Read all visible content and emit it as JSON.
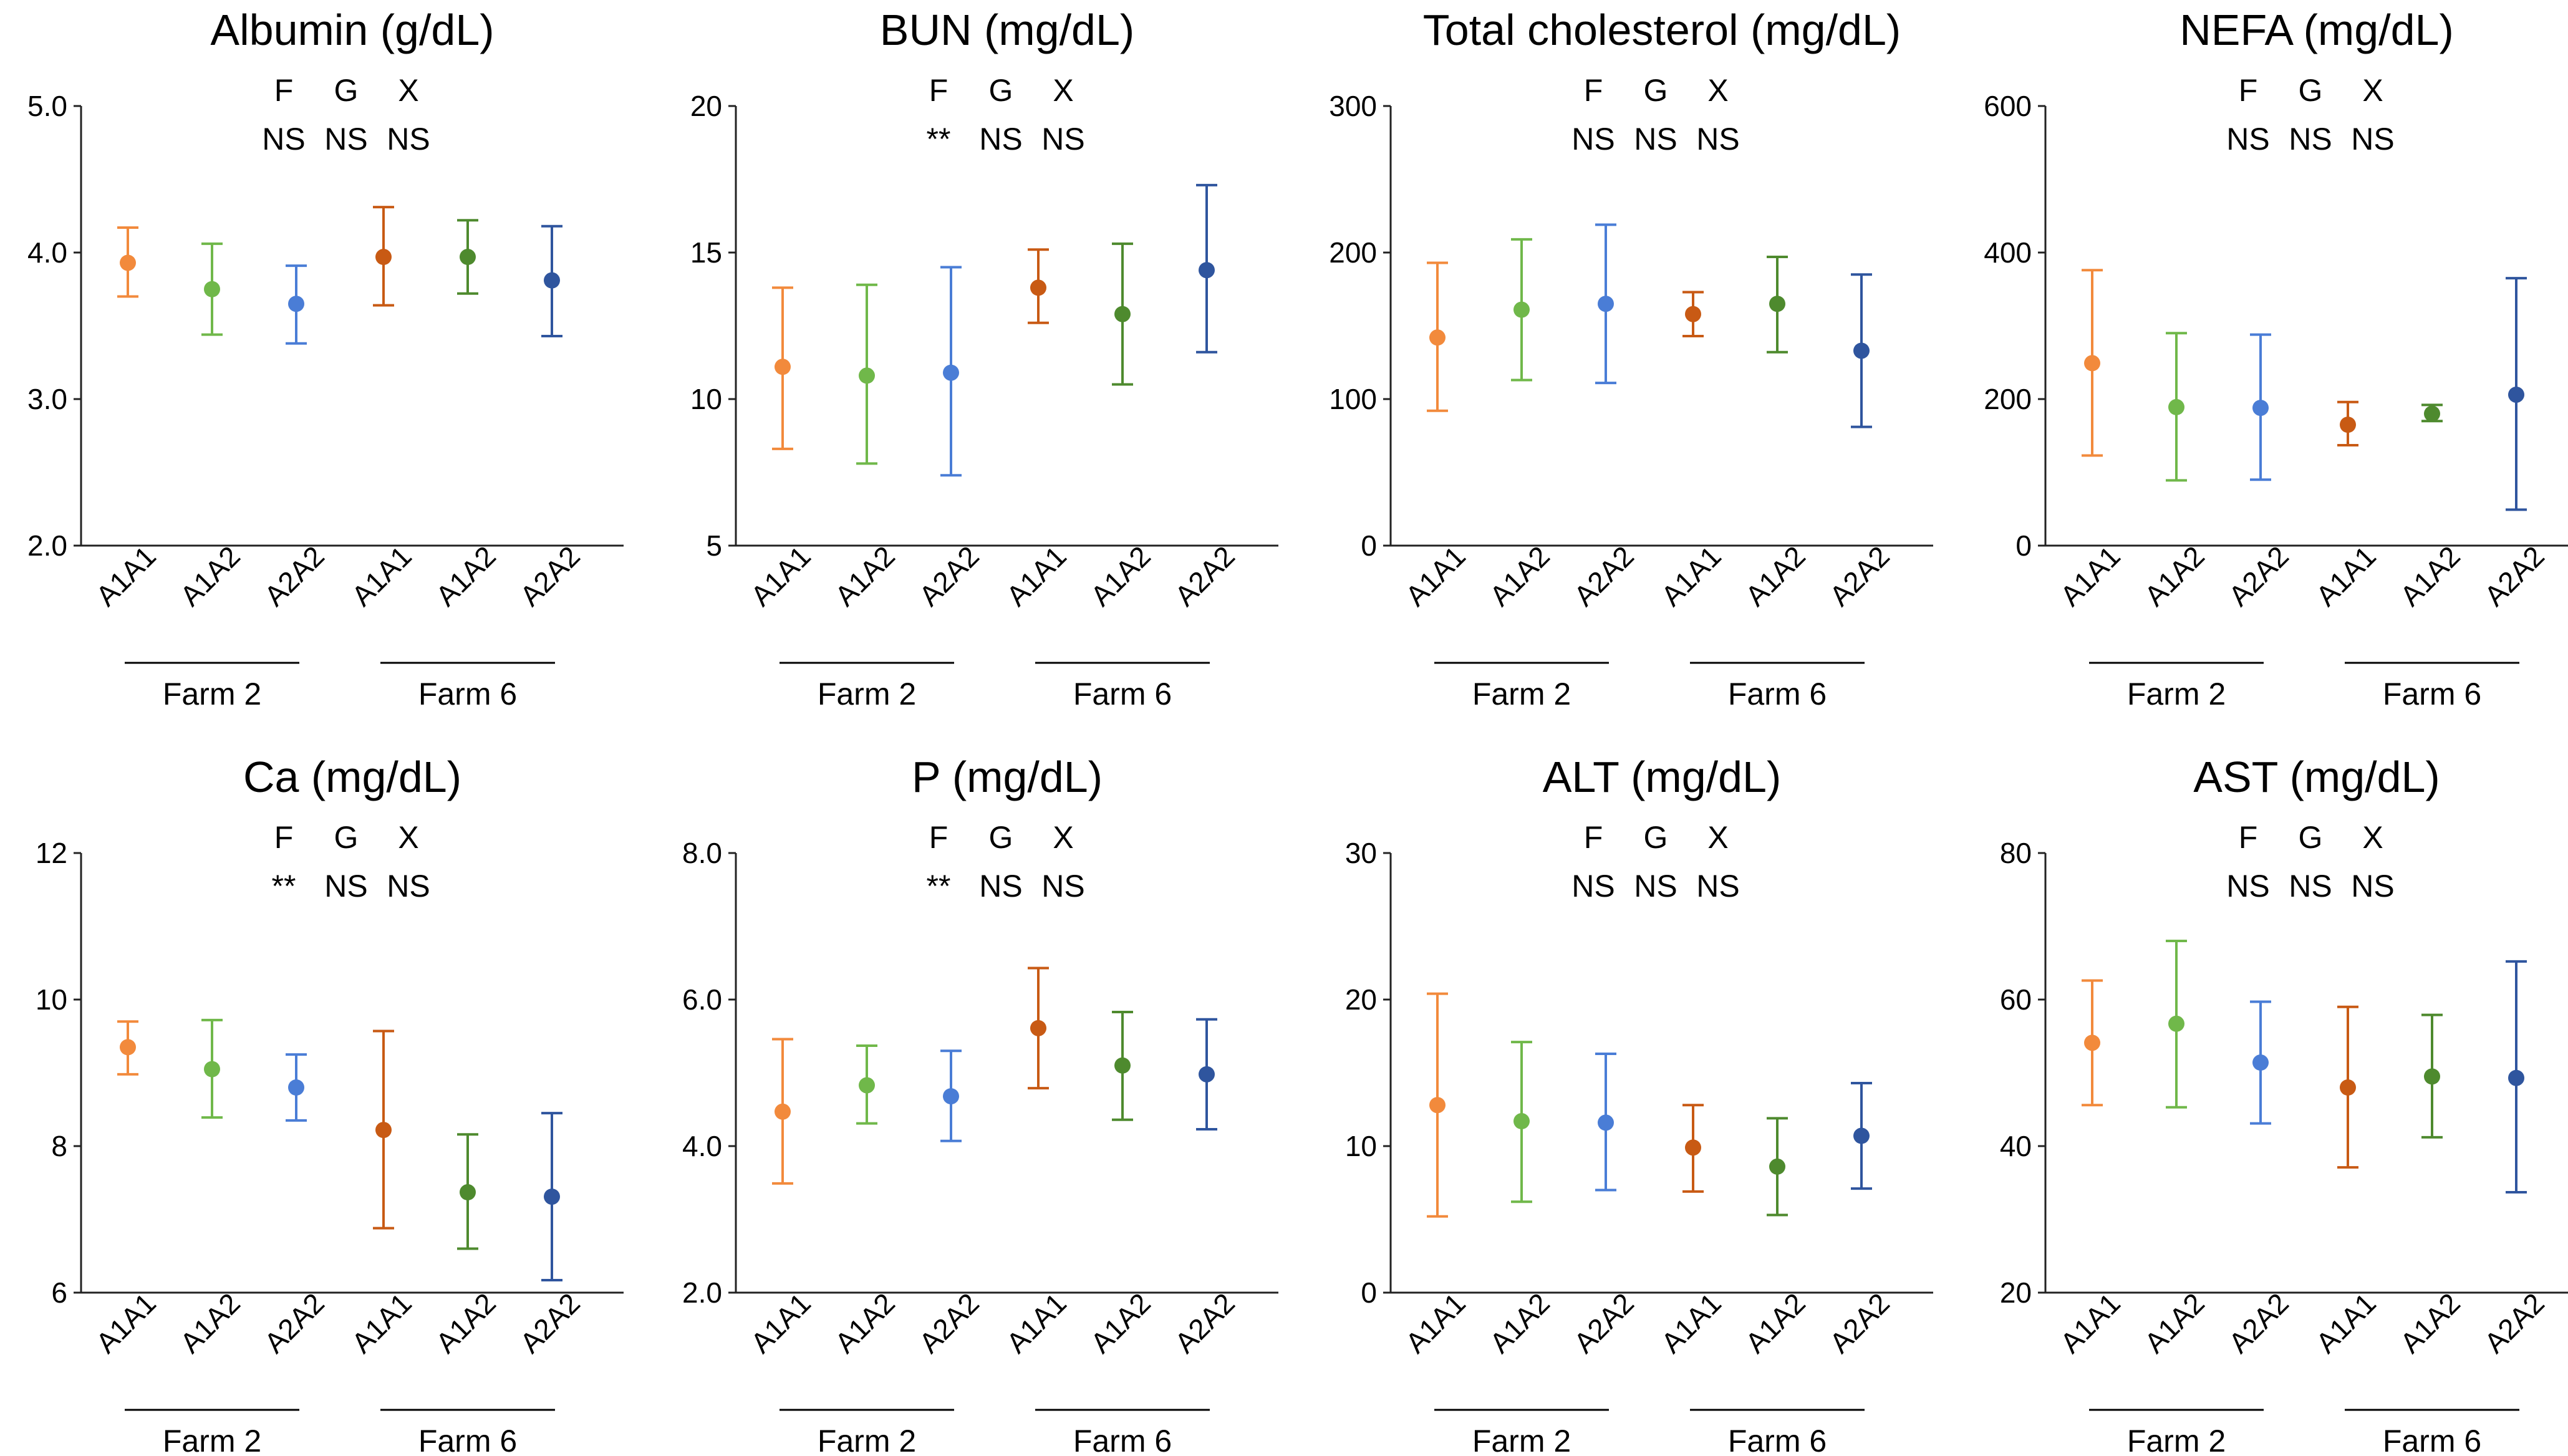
{
  "colors": {
    "farm2": [
      "#F28A3C",
      "#70B84A",
      "#4A7DD6"
    ],
    "farm6": [
      "#C85A14",
      "#4E8A2E",
      "#2F559E"
    ]
  },
  "stat_labels": [
    "F",
    "G",
    "X"
  ],
  "chart_data": [
    {
      "type": "errorbar",
      "title": "Albumin (g/dL)",
      "y_ticks": [
        "2.0",
        "3.0",
        "4.0",
        "5.0"
      ],
      "ylim": [
        2,
        5
      ],
      "stats": [
        "NS",
        "NS",
        "NS"
      ],
      "groups": [
        {
          "name": "Farm 2",
          "categories": [
            "A1A1",
            "A1A2",
            "A2A2"
          ],
          "mean": [
            3.93,
            3.75,
            3.65
          ],
          "low": [
            3.7,
            3.44,
            3.38
          ],
          "high": [
            4.17,
            4.06,
            3.91
          ]
        },
        {
          "name": "Farm 6",
          "categories": [
            "A1A1",
            "A1A2",
            "A2A2"
          ],
          "mean": [
            3.97,
            3.97,
            3.81
          ],
          "low": [
            3.64,
            3.72,
            3.43
          ],
          "high": [
            4.31,
            4.22,
            4.18
          ]
        }
      ]
    },
    {
      "type": "errorbar",
      "title": "BUN (mg/dL)",
      "y_ticks": [
        "5",
        "10",
        "15",
        "20"
      ],
      "ylim": [
        5,
        20
      ],
      "stats": [
        "**",
        "NS",
        "NS"
      ],
      "groups": [
        {
          "name": "Farm 2",
          "categories": [
            "A1A1",
            "A1A2",
            "A2A2"
          ],
          "mean": [
            11.1,
            10.8,
            10.9
          ],
          "low": [
            8.3,
            7.8,
            7.4
          ],
          "high": [
            13.8,
            13.9,
            14.5
          ]
        },
        {
          "name": "Farm 6",
          "categories": [
            "A1A1",
            "A1A2",
            "A2A2"
          ],
          "mean": [
            13.8,
            12.9,
            14.4
          ],
          "low": [
            12.6,
            10.5,
            11.6
          ],
          "high": [
            15.1,
            15.3,
            17.3
          ]
        }
      ]
    },
    {
      "type": "errorbar",
      "title": "Total cholesterol (mg/dL)",
      "y_ticks": [
        "0",
        "100",
        "200",
        "300"
      ],
      "ylim": [
        0,
        300
      ],
      "stats": [
        "NS",
        "NS",
        "NS"
      ],
      "groups": [
        {
          "name": "Farm 2",
          "categories": [
            "A1A1",
            "A1A2",
            "A2A2"
          ],
          "mean": [
            142,
            161,
            165
          ],
          "low": [
            92,
            113,
            111
          ],
          "high": [
            193,
            209,
            219
          ]
        },
        {
          "name": "Farm 6",
          "categories": [
            "A1A1",
            "A1A2",
            "A2A2"
          ],
          "mean": [
            158,
            165,
            133
          ],
          "low": [
            143,
            132,
            81
          ],
          "high": [
            173,
            197,
            185
          ]
        }
      ]
    },
    {
      "type": "errorbar",
      "title": "NEFA (mg/dL)",
      "y_ticks": [
        "0",
        "200",
        "400",
        "600"
      ],
      "ylim": [
        0,
        600
      ],
      "stats": [
        "NS",
        "NS",
        "NS"
      ],
      "groups": [
        {
          "name": "Farm 2",
          "categories": [
            "A1A1",
            "A1A2",
            "A2A2"
          ],
          "mean": [
            249,
            189,
            188
          ],
          "low": [
            123,
            89,
            90
          ],
          "high": [
            376,
            290,
            288
          ]
        },
        {
          "name": "Farm 6",
          "categories": [
            "A1A1",
            "A1A2",
            "A2A2"
          ],
          "mean": [
            165,
            180,
            206
          ],
          "low": [
            137,
            170,
            49
          ],
          "high": [
            196,
            192,
            365
          ]
        }
      ]
    },
    {
      "type": "errorbar",
      "title": "Ca (mg/dL)",
      "y_ticks": [
        "6",
        "8",
        "10",
        "12"
      ],
      "ylim": [
        6,
        12
      ],
      "stats": [
        "**",
        "NS",
        "NS"
      ],
      "groups": [
        {
          "name": "Farm 2",
          "categories": [
            "A1A1",
            "A1A2",
            "A2A2"
          ],
          "mean": [
            9.35,
            9.05,
            8.8
          ],
          "low": [
            8.98,
            8.39,
            8.35
          ],
          "high": [
            9.7,
            9.72,
            9.25
          ]
        },
        {
          "name": "Farm 6",
          "categories": [
            "A1A1",
            "A1A2",
            "A2A2"
          ],
          "mean": [
            8.22,
            7.37,
            7.31
          ],
          "low": [
            6.88,
            6.6,
            6.17
          ],
          "high": [
            9.57,
            8.16,
            8.45
          ]
        }
      ]
    },
    {
      "type": "errorbar",
      "title": "P (mg/dL)",
      "y_ticks": [
        "2.0",
        "4.0",
        "6.0",
        "8.0"
      ],
      "ylim": [
        2,
        8
      ],
      "stats": [
        "**",
        "NS",
        "NS"
      ],
      "groups": [
        {
          "name": "Farm 2",
          "categories": [
            "A1A1",
            "A1A2",
            "A2A2"
          ],
          "mean": [
            4.47,
            4.83,
            4.68
          ],
          "low": [
            3.49,
            4.31,
            4.07
          ],
          "high": [
            5.46,
            5.37,
            5.3
          ]
        },
        {
          "name": "Farm 6",
          "categories": [
            "A1A1",
            "A1A2",
            "A2A2"
          ],
          "mean": [
            5.61,
            5.1,
            4.98
          ],
          "low": [
            4.79,
            4.36,
            4.23
          ],
          "high": [
            6.43,
            5.83,
            5.73
          ]
        }
      ]
    },
    {
      "type": "errorbar",
      "title": "ALT (mg/dL)",
      "y_ticks": [
        "0",
        "10",
        "20",
        "30"
      ],
      "ylim": [
        0,
        30
      ],
      "stats": [
        "NS",
        "NS",
        "NS"
      ],
      "groups": [
        {
          "name": "Farm 2",
          "categories": [
            "A1A1",
            "A1A2",
            "A2A2"
          ],
          "mean": [
            12.8,
            11.7,
            11.6
          ],
          "low": [
            5.2,
            6.2,
            7.0
          ],
          "high": [
            20.4,
            17.1,
            16.3
          ]
        },
        {
          "name": "Farm 6",
          "categories": [
            "A1A1",
            "A1A2",
            "A2A2"
          ],
          "mean": [
            9.9,
            8.6,
            10.7
          ],
          "low": [
            6.9,
            5.3,
            7.1
          ],
          "high": [
            12.8,
            11.9,
            14.3
          ]
        }
      ]
    },
    {
      "type": "errorbar",
      "title": "AST (mg/dL)",
      "y_ticks": [
        "20",
        "40",
        "60",
        "80"
      ],
      "ylim": [
        20,
        80
      ],
      "stats": [
        "NS",
        "NS",
        "NS"
      ],
      "groups": [
        {
          "name": "Farm 2",
          "categories": [
            "A1A1",
            "A1A2",
            "A2A2"
          ],
          "mean": [
            54.1,
            56.7,
            51.4
          ],
          "low": [
            45.6,
            45.3,
            43.1
          ],
          "high": [
            62.6,
            68.0,
            59.7
          ]
        },
        {
          "name": "Farm 6",
          "categories": [
            "A1A1",
            "A1A2",
            "A2A2"
          ],
          "mean": [
            48.0,
            49.5,
            49.3
          ],
          "low": [
            37.1,
            41.2,
            33.7
          ],
          "high": [
            59.0,
            57.9,
            65.2
          ]
        }
      ]
    }
  ]
}
